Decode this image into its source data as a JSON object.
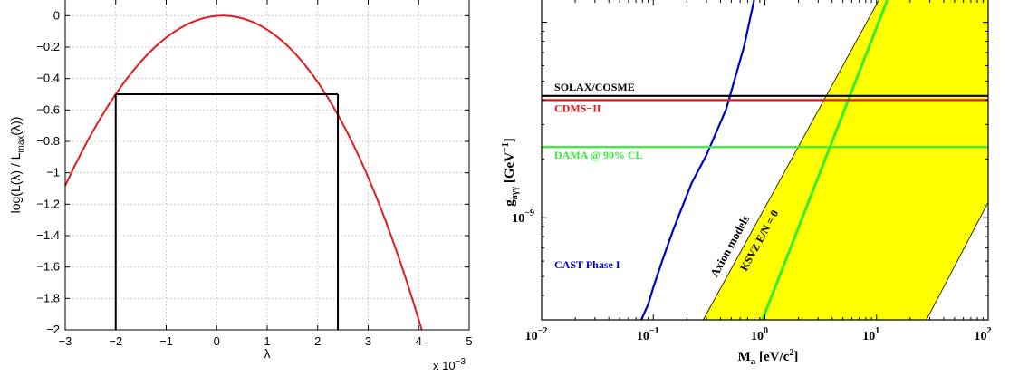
{
  "chart_data": [
    {
      "type": "line",
      "xlabel": "λ",
      "ylabel": "log(L(λ) / L",
      "ylabel_sub": "max",
      "ylabel_tail": "(λ))",
      "exponent_label": "x 10",
      "exponent_value": "−3",
      "xlim": [
        -3,
        5
      ],
      "ylim": [
        -2,
        0.1
      ],
      "xticks": [
        -3,
        -2,
        -1,
        0,
        1,
        2,
        3,
        4,
        5
      ],
      "xtick_labels": [
        "−3",
        "−2",
        "−1",
        "0",
        "1",
        "2",
        "3",
        "4",
        "5"
      ],
      "yticks": [
        0,
        -0.2,
        -0.4,
        -0.6,
        -0.8,
        -1,
        -1.2,
        -1.4,
        -1.6,
        -1.8,
        -2
      ],
      "ytick_labels": [
        "0",
        "−0.2",
        "−0.4",
        "−0.6",
        "−0.8",
        "−1",
        "−1.2",
        "−1.4",
        "−1.6",
        "−1.8",
        "−2"
      ],
      "grid": true,
      "series": [
        {
          "color": "#e41a1c",
          "curve": "parabola",
          "x": [
            -3,
            -2,
            -1,
            0,
            0.12,
            1,
            2,
            2.4,
            3,
            4,
            4.75
          ],
          "y": [
            -1.05,
            -0.5,
            -0.15,
            -0.01,
            0,
            -0.06,
            -0.34,
            -0.5,
            -0.78,
            -1.4,
            -2.0
          ]
        }
      ],
      "interval": {
        "x_low": -2,
        "x_high": 2.4,
        "y": -0.5,
        "color": "#000000"
      }
    },
    {
      "type": "line",
      "xlabel": "M",
      "xlabel_sub": "a",
      "xlabel_tail": " [eV/c",
      "xlabel_sup": "2",
      "xlabel_end": "]",
      "ylabel": "g",
      "ylabel_sub": "aγγ",
      "ylabel_tail": " [GeV",
      "ylabel_sup": "−1",
      "ylabel_end": "]",
      "x_scale": "log",
      "y_scale": "log",
      "xlim": [
        0.01,
        100
      ],
      "ylim": [
        3e-10,
        1.3e-08
      ],
      "xticks": [
        0.01,
        0.1,
        1,
        10,
        100
      ],
      "xtick_base": "10",
      "xtick_exps": [
        "−2",
        "−1",
        "0",
        "1",
        "2"
      ],
      "ytick": 1e-09,
      "ytick_base": "10",
      "ytick_exp": "−9",
      "grid": false,
      "band": {
        "name": "Axion models",
        "fill": "#ffff00",
        "left_edge": {
          "x": [
            0.28,
            10.5
          ],
          "y": [
            3e-10,
            1.3e-08
          ]
        },
        "right_edge": {
          "x": [
            28,
            100
          ],
          "y": [
            3e-10,
            1.2e-09
          ]
        },
        "label_x": 0.52,
        "label_y": 7e-10
      },
      "ksvz": {
        "label": "KSVZ E/N = 0",
        "color": "#33ee33",
        "x": [
          0.95,
          12.5
        ],
        "y": [
          3e-10,
          1.3e-08
        ],
        "label_x": 0.95,
        "label_y": 7.5e-10
      },
      "series": [
        {
          "name": "CAST Phase I",
          "color": "#0000cc",
          "curve": "limit",
          "x": [
            0.078,
            0.09,
            0.1,
            0.12,
            0.15,
            0.18,
            0.22,
            0.3,
            0.45,
            0.65,
            0.8
          ],
          "y": [
            3e-10,
            3.6e-10,
            4.4e-10,
            6e-10,
            8.6e-10,
            1.12e-09,
            1.5e-09,
            2.1e-09,
            3.6e-09,
            7.5e-09,
            1.3e-08
          ],
          "label_x": 0.013,
          "label_y": 5.5e-10
        },
        {
          "name": "SOLAX/COSME",
          "color": "#000000",
          "curve": "horizontal",
          "y": 4.2e-09,
          "label_x": 0.013
        },
        {
          "name": "CDMS−II",
          "color": "#e41a1c",
          "curve": "horizontal",
          "y": 4e-09,
          "label_x": 0.013
        },
        {
          "name": "DAMA @ 90% CL",
          "color": "#33ee33",
          "curve": "horizontal",
          "y": 2.3e-09,
          "label_x": 0.013
        }
      ]
    }
  ]
}
